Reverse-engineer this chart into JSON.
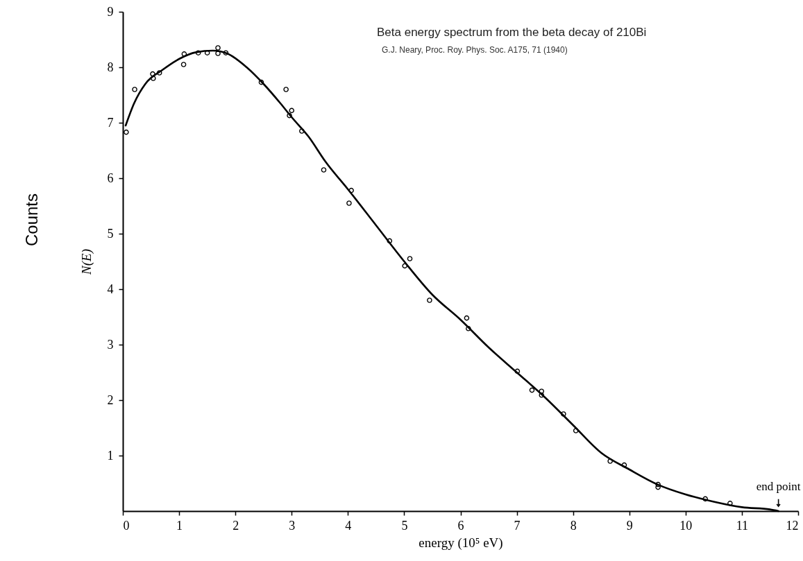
{
  "chart_data": {
    "type": "scatter",
    "title": "Beta energy spectrum from the beta decay of 210Bi",
    "subtitle": "G.J. Neary, Proc. Roy. Phys. Soc. A175, 71 (1940)",
    "xlabel": "energy (10⁵ eV)",
    "ylabel": "N(E)",
    "annotations": [
      "Counts",
      {
        "text": "end point",
        "x": 11.65,
        "y": 0
      }
    ],
    "xlim": [
      0,
      12
    ],
    "xticks": [
      0,
      1,
      2,
      3,
      4,
      5,
      6,
      7,
      8,
      9,
      10,
      11,
      12
    ],
    "ylim": [
      0,
      9
    ],
    "yticks": [
      1,
      2,
      3,
      4,
      5,
      6,
      7,
      8,
      9
    ],
    "grid": false,
    "series": [
      {
        "marker": "circle",
        "color": "#000000",
        "x": [
          0.06,
          0.21,
          0.53,
          0.54,
          0.65,
          1.08,
          1.09,
          1.34,
          1.5,
          1.69,
          1.69,
          1.83,
          2.46,
          2.9,
          2.96,
          3.0,
          3.18,
          3.57,
          4.02,
          4.06,
          4.74,
          5.01,
          5.1,
          5.45,
          6.11,
          6.14,
          7.01,
          7.27,
          7.44,
          7.44,
          7.83,
          8.05,
          8.66,
          8.91,
          9.51,
          9.51,
          10.35,
          10.79
        ],
        "values": [
          6.83,
          7.6,
          7.88,
          7.8,
          7.9,
          8.05,
          8.24,
          8.26,
          8.26,
          8.35,
          8.25,
          8.26,
          7.73,
          7.6,
          7.13,
          7.22,
          6.85,
          6.15,
          5.55,
          5.78,
          4.87,
          4.42,
          4.55,
          3.8,
          3.48,
          3.29,
          2.52,
          2.18,
          2.16,
          2.09,
          1.75,
          1.45,
          0.9,
          0.83,
          0.48,
          0.43,
          0.22,
          0.14
        ]
      },
      {
        "type": "line",
        "color": "#000000",
        "x": [
          0.05,
          0.2,
          0.4,
          0.7,
          1.0,
          1.3,
          1.6,
          1.85,
          2.2,
          2.5,
          2.8,
          3.0,
          3.3,
          3.6,
          4.0,
          4.5,
          5.0,
          5.5,
          6.0,
          6.5,
          7.0,
          7.5,
          8.0,
          8.5,
          9.0,
          9.5,
          10.0,
          10.5,
          11.0,
          11.5,
          11.65
        ],
        "values": [
          6.95,
          7.35,
          7.7,
          7.95,
          8.15,
          8.27,
          8.3,
          8.25,
          8.0,
          7.7,
          7.35,
          7.1,
          6.75,
          6.3,
          5.8,
          5.15,
          4.5,
          3.9,
          3.45,
          2.95,
          2.5,
          2.05,
          1.55,
          1.05,
          0.75,
          0.48,
          0.3,
          0.17,
          0.07,
          0.03,
          0
        ]
      }
    ]
  }
}
